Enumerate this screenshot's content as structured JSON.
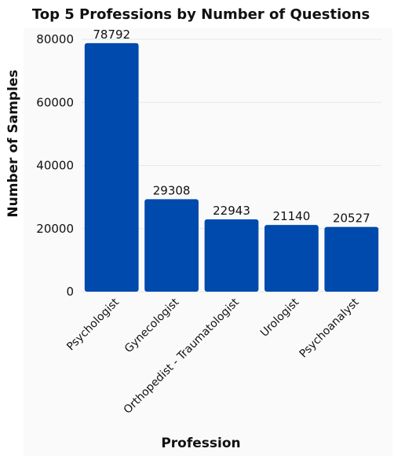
{
  "chart_data": {
    "type": "bar",
    "title": "Top 5 Professions by Number of Questions",
    "xlabel": "Profession",
    "ylabel": "Number of Samples",
    "categories": [
      "Psychologist",
      "Gynecologist",
      "Orthopedist - Traumatologist",
      "Urologist",
      "Psychoanalyst"
    ],
    "values": [
      78792,
      29308,
      22943,
      21140,
      20527
    ],
    "yticks": [
      0,
      20000,
      40000,
      60000,
      80000
    ],
    "ylim": [
      0,
      82000
    ],
    "grid": true,
    "bar_color": "#004aad",
    "plot_background": "#fafafa"
  }
}
